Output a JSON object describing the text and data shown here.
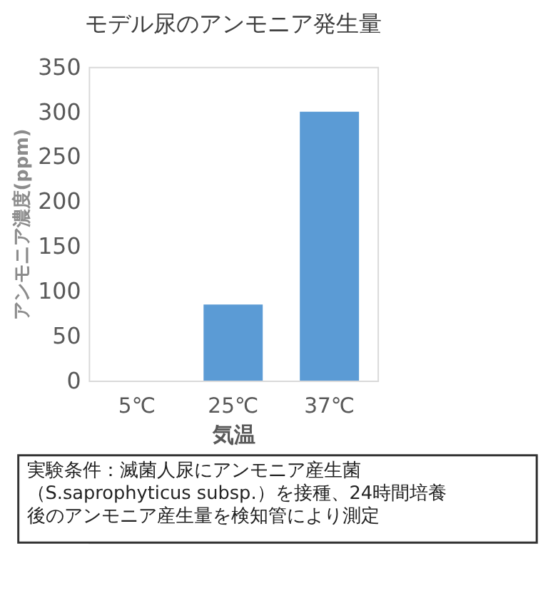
{
  "chart_data": {
    "type": "bar",
    "title": "モデル尿のアンモニア発生量",
    "xlabel": "気温",
    "ylabel": "アンモニア濃度(ppm)",
    "categories": [
      "5℃",
      "25℃",
      "37℃"
    ],
    "values": [
      0,
      85,
      300
    ],
    "color": "#5b9bd5",
    "ylim": [
      0,
      350
    ],
    "yticks": [
      0,
      50,
      100,
      150,
      200,
      250,
      300,
      350
    ],
    "grid": false,
    "annotations": [
      "実験条件：滅菌人尿にアンモニア産生菌",
      "（S.saprophyticus subsp.）を接種、24時間培養",
      "後のアンモニア産生量を検知管により測定"
    ]
  }
}
